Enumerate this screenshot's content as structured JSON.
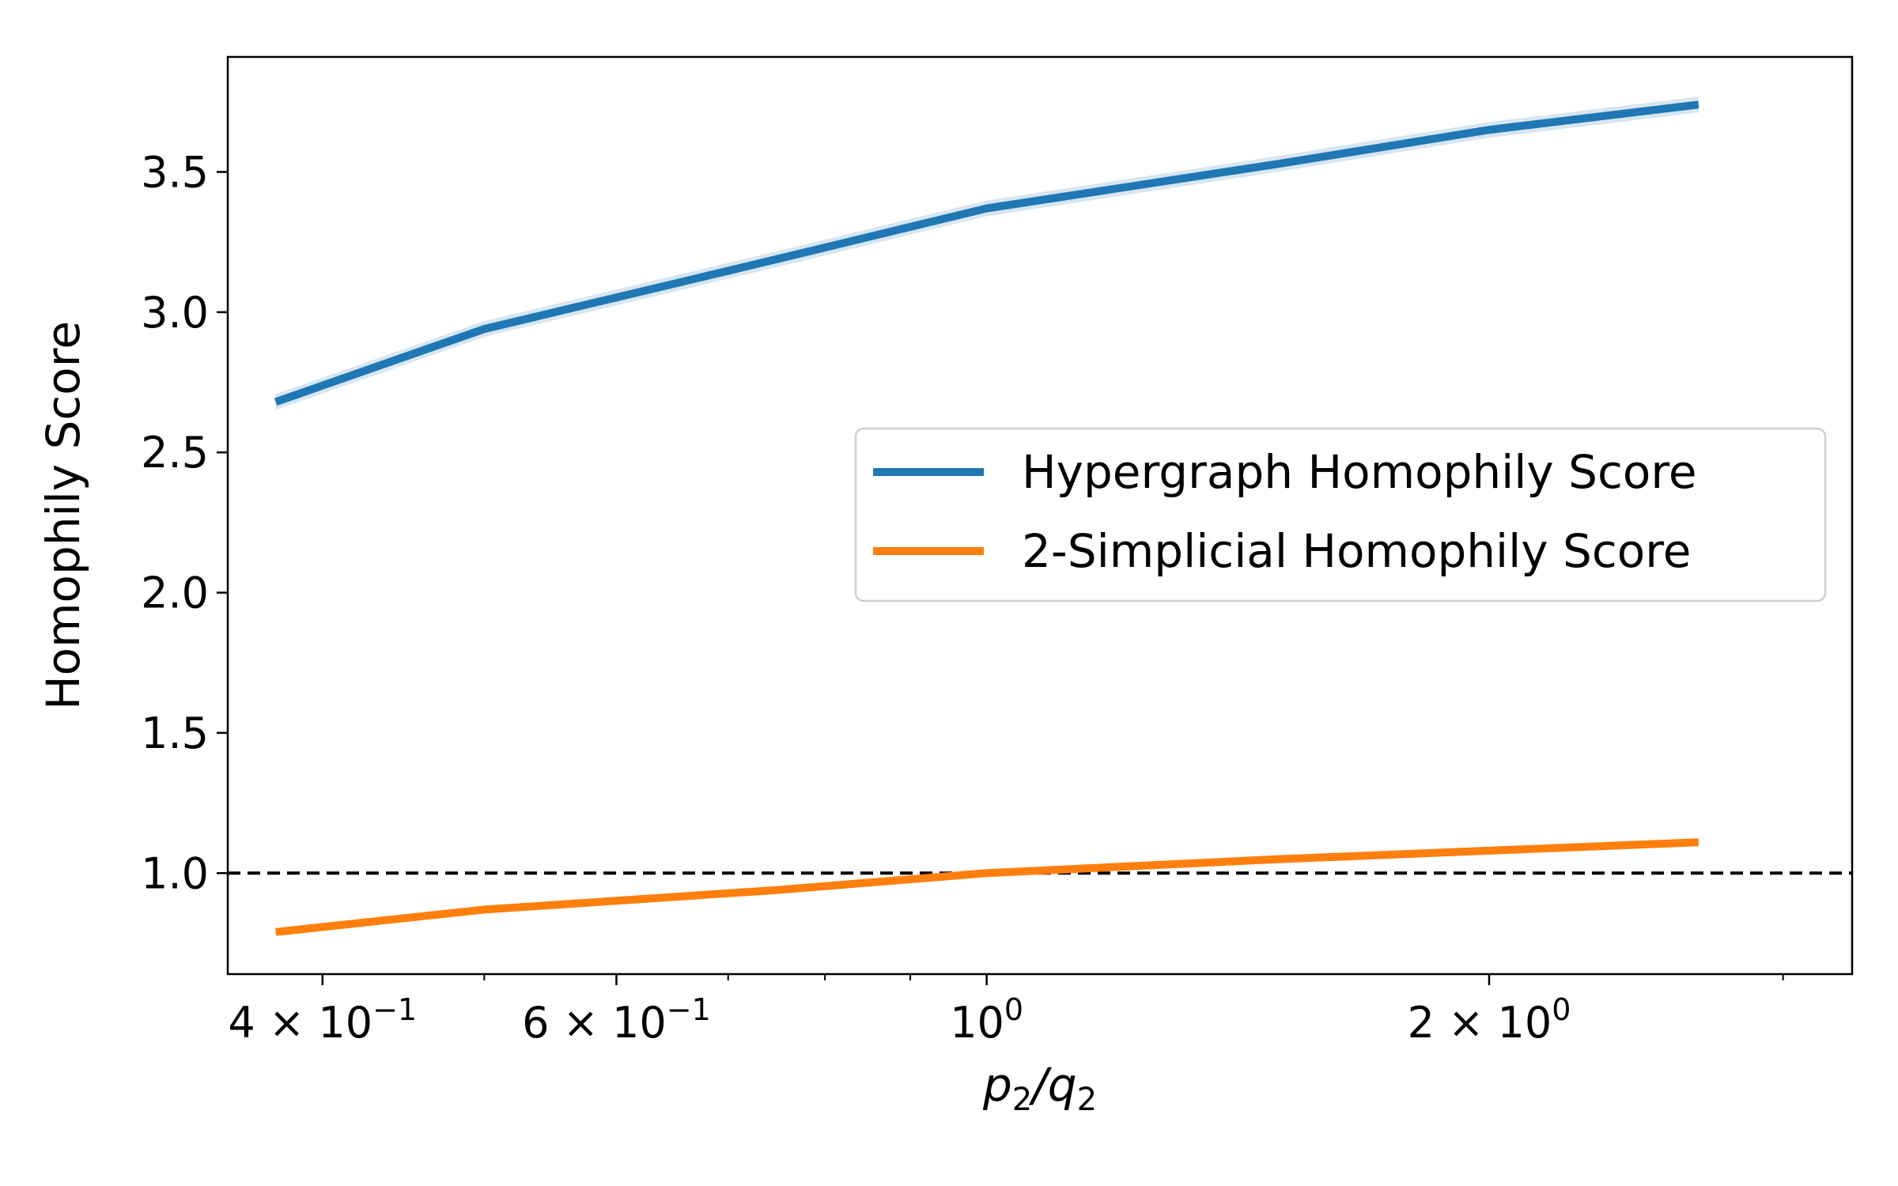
{
  "chart_data": {
    "type": "line",
    "title": "",
    "xlabel": "p2/q2",
    "ylabel": "Homophily Score",
    "xscale": "log",
    "xlim": [
      0.351,
      3.3
    ],
    "ylim": [
      0.64,
      3.91
    ],
    "grid": false,
    "legend_position": "center-right",
    "x": [
      0.375,
      0.5,
      0.75,
      1.0,
      1.5,
      2.0,
      2.67
    ],
    "series": [
      {
        "name": "Hypergraph Homophily Score",
        "color": "#1f77b4",
        "values": [
          2.68,
          2.94,
          3.19,
          3.37,
          3.53,
          3.65,
          3.74
        ]
      },
      {
        "name": "2-Simplicial Homophily Score",
        "color": "#ff7f0e",
        "values": [
          0.79,
          0.87,
          0.94,
          1.0,
          1.05,
          1.08,
          1.11
        ]
      }
    ],
    "reference_line": {
      "y": 1.0,
      "style": "dashed",
      "color": "#000000"
    },
    "x_major_ticks": [
      {
        "value": 0.4,
        "mantissa": "4",
        "exponent": "−1"
      },
      {
        "value": 0.6,
        "mantissa": "6",
        "exponent": "−1"
      },
      {
        "value": 1.0,
        "mantissa": "",
        "exponent": "0"
      },
      {
        "value": 2.0,
        "mantissa": "2",
        "exponent": "0"
      }
    ],
    "x_minor_ticks": [
      0.5,
      0.7,
      0.8,
      0.9,
      3.0
    ],
    "y_ticks": [
      {
        "value": 1.0,
        "label": "1.0"
      },
      {
        "value": 1.5,
        "label": "1.5"
      },
      {
        "value": 2.0,
        "label": "2.0"
      },
      {
        "value": 2.5,
        "label": "2.5"
      },
      {
        "value": 3.0,
        "label": "3.0"
      },
      {
        "value": 3.5,
        "label": "3.5"
      }
    ]
  }
}
